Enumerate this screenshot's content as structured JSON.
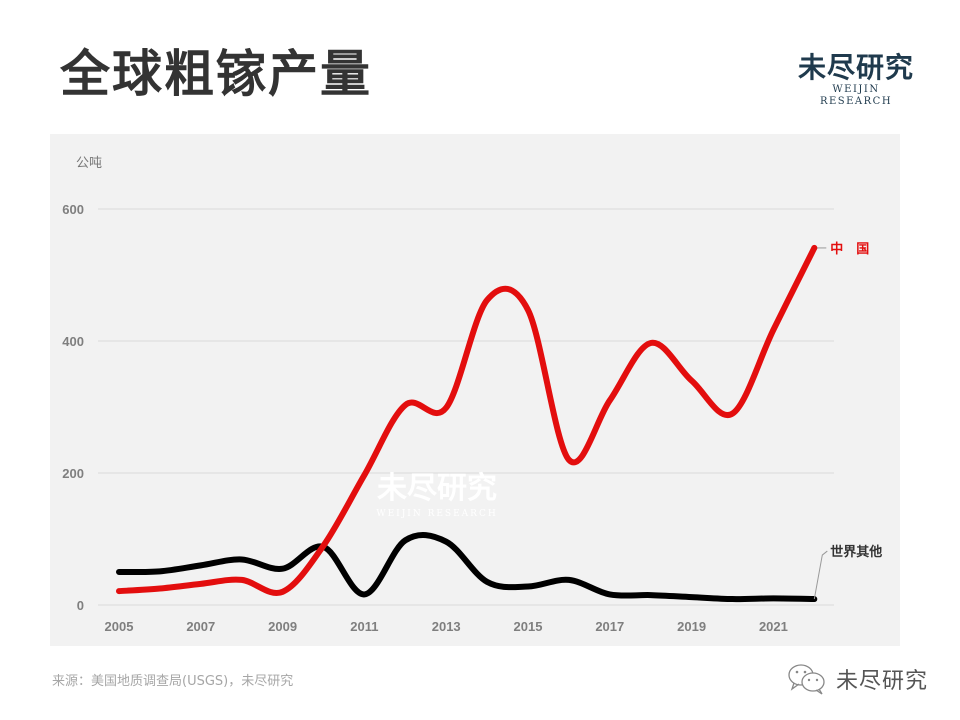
{
  "header": {
    "title": "全球粗镓产量",
    "logo_cn": "未尽研究",
    "logo_en": "WEIJIN RESEARCH"
  },
  "footer": {
    "source": "来源：美国地质调查局(USGS)，未尽研究",
    "wechat_label": "未尽研究",
    "wechat_icon": "wechat-icon"
  },
  "watermark": {
    "cn": "未尽研究",
    "en": "WEIJIN RESEARCH"
  },
  "colors": {
    "china": "#e30e0e",
    "rest_of_world": "#000000",
    "panel_bg": "#f2f2f2",
    "grid": "#d9d9d9",
    "axis_text": "#7f7f7f"
  },
  "chart_data": {
    "type": "line",
    "title": "全球粗镓产量",
    "xlabel": "",
    "ylabel": "公吨",
    "ylim": [
      0,
      600
    ],
    "yticks": [
      0,
      200,
      400,
      600
    ],
    "x": [
      2005,
      2006,
      2007,
      2008,
      2009,
      2010,
      2011,
      2012,
      2013,
      2014,
      2015,
      2016,
      2017,
      2018,
      2019,
      2020,
      2021,
      2022
    ],
    "xtick_labels": [
      "2005",
      "2007",
      "2009",
      "2011",
      "2013",
      "2015",
      "2017",
      "2019",
      "2021"
    ],
    "grid": true,
    "legend_position": "inline labels at line ends",
    "series": [
      {
        "name": "中　国",
        "color": "#e30e0e",
        "values": [
          21,
          25,
          32,
          38,
          20,
          90,
          197,
          303,
          299,
          462,
          447,
          220,
          310,
          397,
          340,
          290,
          417,
          541
        ]
      },
      {
        "name": "世界其他",
        "color": "#000000",
        "values": [
          50,
          51,
          60,
          69,
          55,
          88,
          16,
          98,
          96,
          35,
          28,
          38,
          16,
          15,
          12,
          9,
          10,
          9
        ]
      }
    ]
  }
}
